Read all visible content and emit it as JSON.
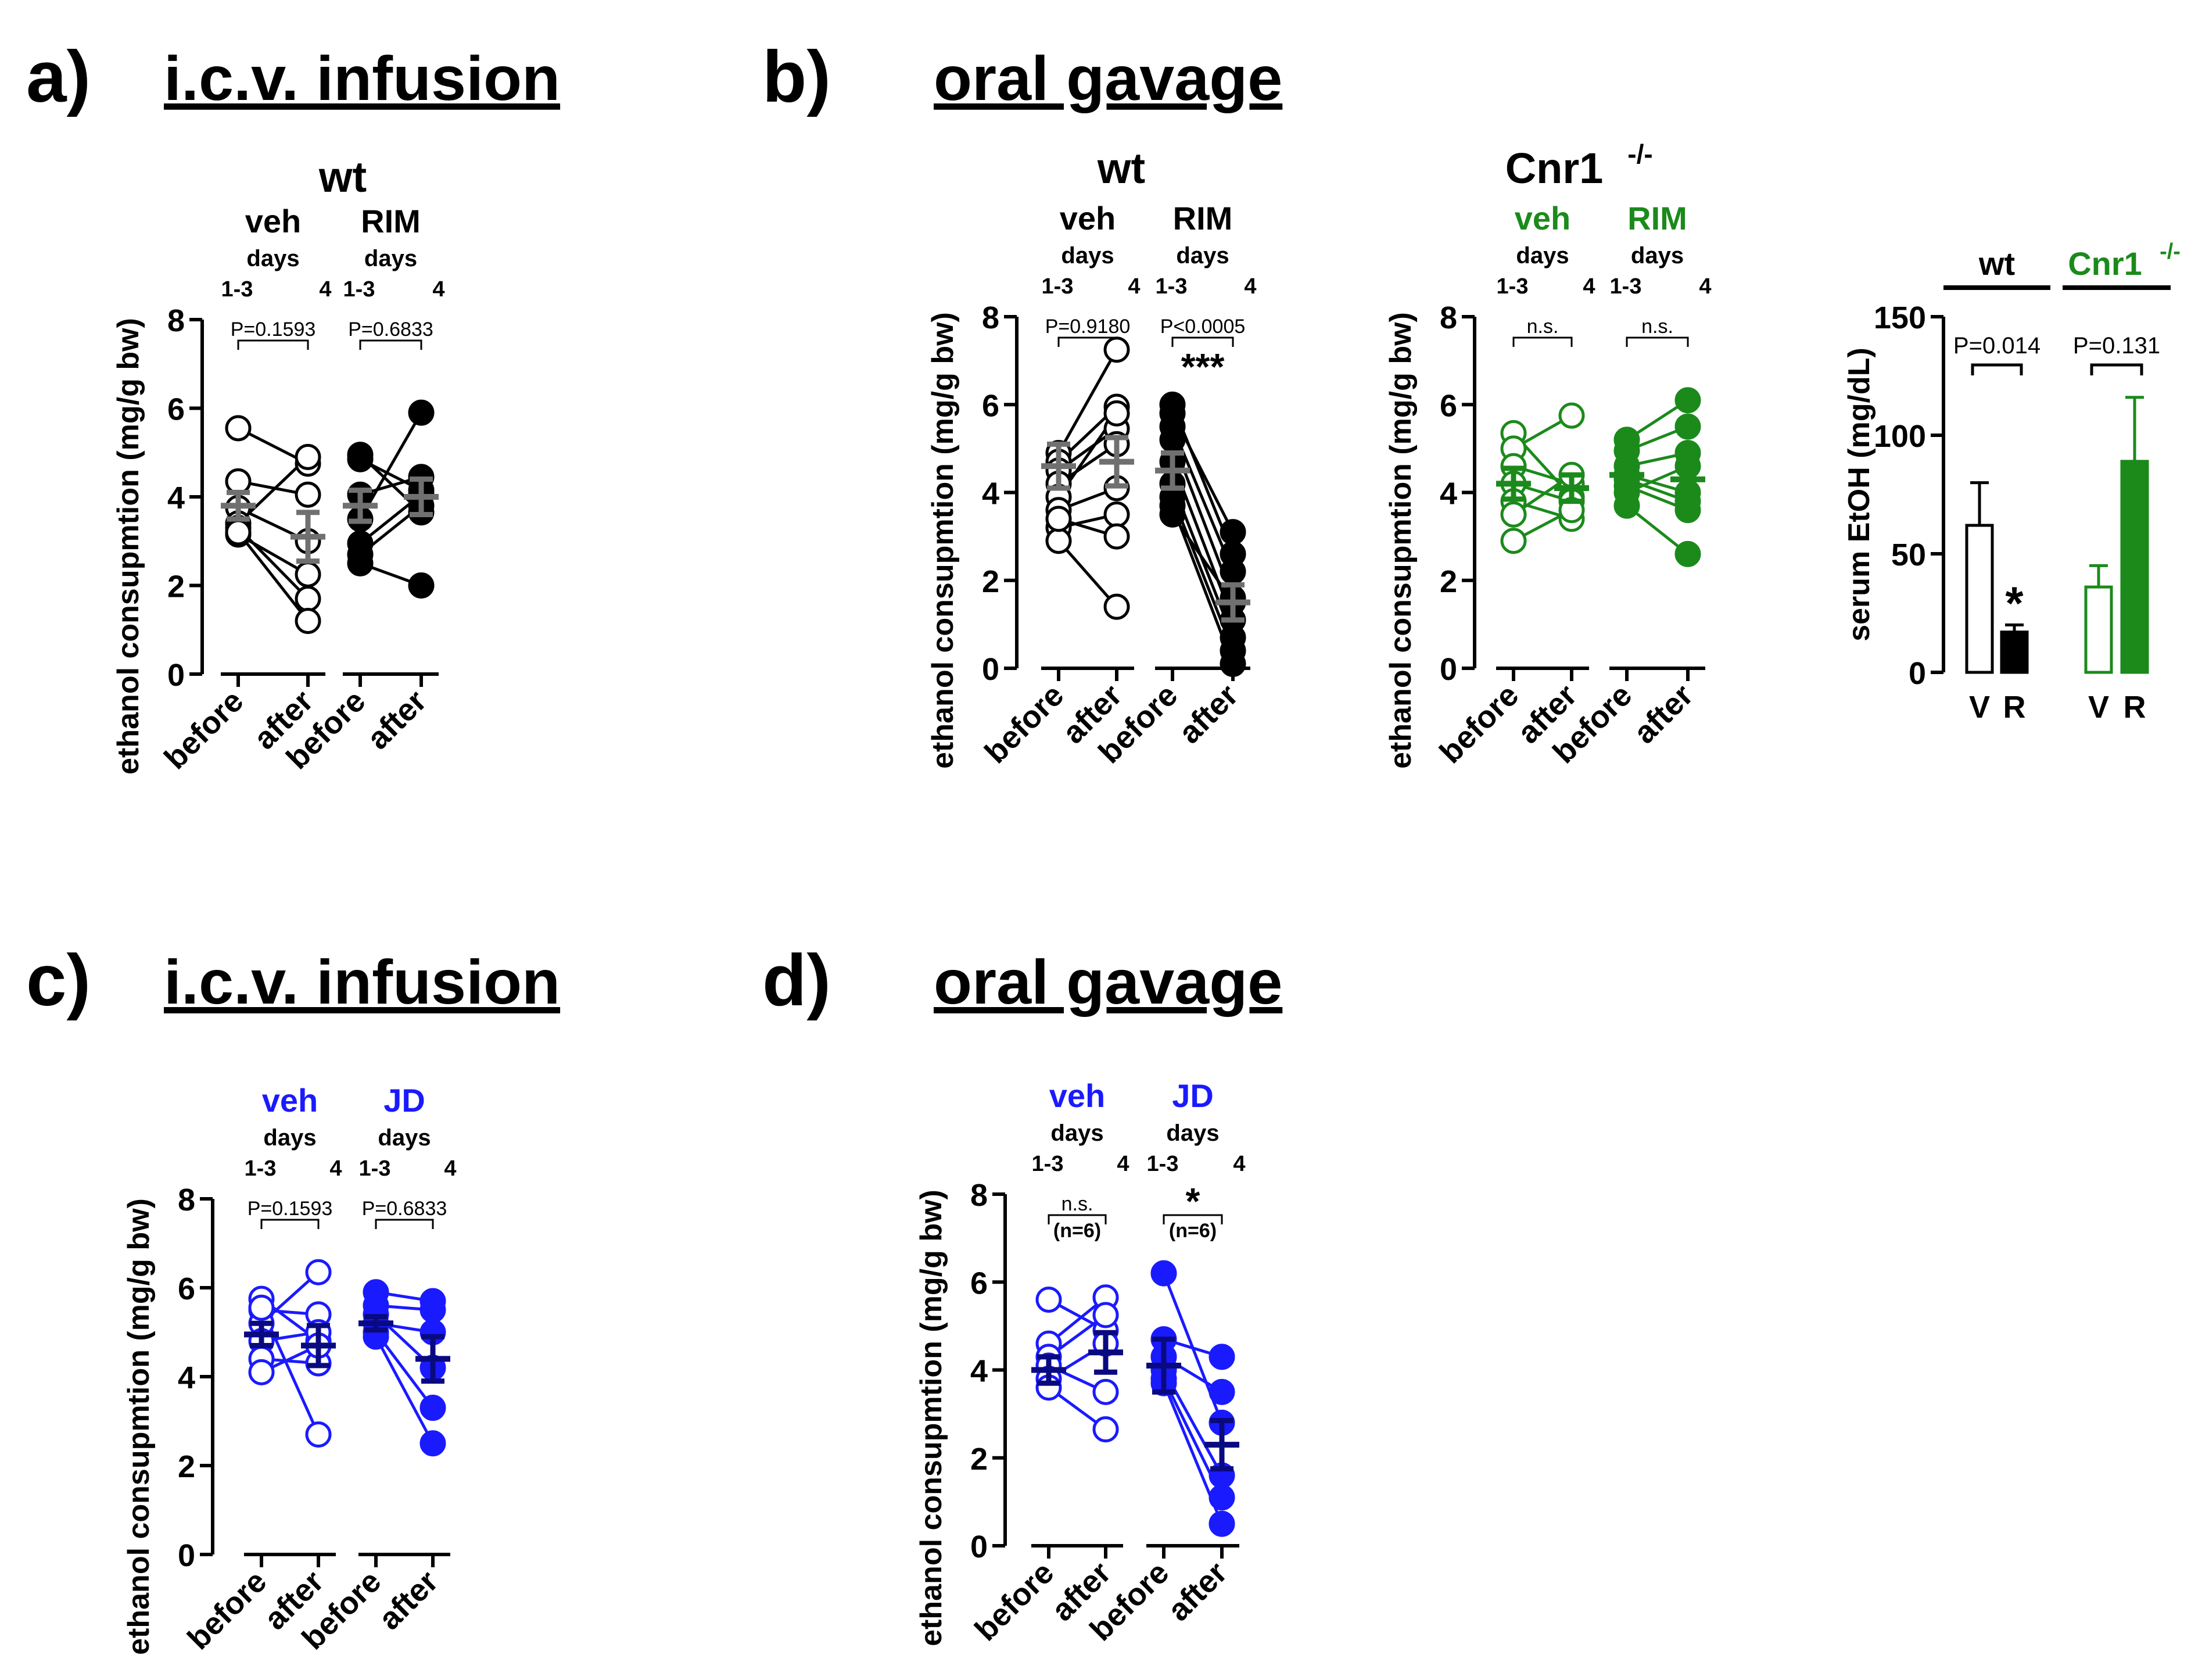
{
  "panels": [
    {
      "label": "a)",
      "title": "i.c.v. infusion"
    },
    {
      "label": "b)",
      "title": "oral gavage"
    },
    {
      "label": "c)",
      "title": "i.c.v. infusion"
    },
    {
      "label": "d)",
      "title": "oral gavage"
    }
  ],
  "chart_data": [
    {
      "type": "scatter",
      "panel": "a",
      "subtitle": "wt",
      "ylabel": "ethanol consupmtion (mg/g bw)",
      "ylim": [
        0,
        8
      ],
      "yticks": [
        0,
        2,
        4,
        6,
        8
      ],
      "xcats": [
        "before",
        "after",
        "before",
        "after"
      ],
      "day_label": "days",
      "day_ticks": [
        "1-3",
        "4"
      ],
      "groups": [
        {
          "name": "veh",
          "color": "#000000",
          "filled": false,
          "pvalue": "P=0.1593",
          "stars": "",
          "n_note": "",
          "pairs": [
            [
              5.55,
              4.75
            ],
            [
              4.35,
              4.05
            ],
            [
              3.75,
              3.0
            ],
            [
              3.4,
              4.9
            ],
            [
              3.15,
              2.25
            ],
            [
              3.3,
              1.7
            ],
            [
              3.2,
              1.2
            ]
          ],
          "mean": [
            3.8,
            3.1
          ],
          "sem": [
            0.3,
            0.55
          ],
          "summary_color": "#707070"
        },
        {
          "name": "RIM",
          "color": "#000000",
          "filled": true,
          "pvalue": "P=0.6833",
          "stars": "",
          "n_note": "",
          "pairs": [
            [
              4.95,
              3.65
            ],
            [
              4.85,
              4.15
            ],
            [
              4.05,
              4.45
            ],
            [
              3.5,
              5.9
            ],
            [
              2.95,
              4.05
            ],
            [
              2.7,
              3.8
            ],
            [
              2.5,
              2.0
            ]
          ],
          "mean": [
            3.8,
            4.0
          ],
          "sem": [
            0.35,
            0.4
          ],
          "summary_color": "#707070"
        }
      ]
    },
    {
      "type": "scatter",
      "panel": "b-wt",
      "subtitle": "wt",
      "ylabel": "ethanol consupmtion (mg/g bw)",
      "ylim": [
        0,
        8
      ],
      "yticks": [
        0,
        2,
        4,
        6,
        8
      ],
      "xcats": [
        "before",
        "after",
        "before",
        "after"
      ],
      "day_label": "days",
      "day_ticks": [
        "1-3",
        "4"
      ],
      "groups": [
        {
          "name": "veh",
          "color": "#000000",
          "filled": false,
          "pvalue": "P=0.9180",
          "stars": "",
          "n_note": "",
          "pairs": [
            [
              4.9,
              7.25
            ],
            [
              4.7,
              5.95
            ],
            [
              4.5,
              5.45
            ],
            [
              4.2,
              5.1
            ],
            [
              3.9,
              5.8
            ],
            [
              3.6,
              4.1
            ],
            [
              3.2,
              3.5
            ],
            [
              2.9,
              1.4
            ],
            [
              3.4,
              3.0
            ]
          ],
          "mean": [
            4.6,
            4.7
          ],
          "sem": [
            0.5,
            0.55
          ],
          "summary_color": "#707070"
        },
        {
          "name": "RIM",
          "color": "#000000",
          "filled": true,
          "pvalue": "P<0.0005",
          "stars": "***",
          "n_note": "",
          "pairs": [
            [
              6.0,
              2.6
            ],
            [
              5.8,
              3.1
            ],
            [
              5.5,
              2.2
            ],
            [
              5.2,
              1.6
            ],
            [
              4.7,
              1.1
            ],
            [
              4.2,
              0.7
            ],
            [
              3.9,
              0.4
            ],
            [
              3.7,
              0.1
            ],
            [
              3.5,
              1.5
            ]
          ],
          "mean": [
            4.5,
            1.5
          ],
          "sem": [
            0.4,
            0.4
          ],
          "summary_color": "#707070"
        }
      ]
    },
    {
      "type": "scatter",
      "panel": "b-cnr1",
      "subtitle": "Cnr1",
      "subtitle_sup": "-/-",
      "ylabel": "ethanol consupmtion (mg/g bw)",
      "ylim": [
        0,
        8
      ],
      "yticks": [
        0,
        2,
        4,
        6,
        8
      ],
      "xcats": [
        "before",
        "after",
        "before",
        "after"
      ],
      "day_label": "days",
      "day_ticks": [
        "1-3",
        "4"
      ],
      "groups": [
        {
          "name": "veh",
          "color": "#1b8a1b",
          "filled": false,
          "pvalue": "n.s.",
          "stars": "",
          "n_note": "",
          "pairs": [
            [
              5.35,
              3.9
            ],
            [
              5.0,
              5.75
            ],
            [
              4.6,
              4.2
            ],
            [
              4.2,
              3.8
            ],
            [
              3.8,
              3.4
            ],
            [
              3.5,
              4.4
            ],
            [
              2.9,
              3.6
            ]
          ],
          "mean": [
            4.2,
            4.1
          ],
          "sem": [
            0.35,
            0.3
          ],
          "summary_color": "#1b8a1b"
        },
        {
          "name": "RIM",
          "color": "#1b8a1b",
          "filled": true,
          "pvalue": "n.s.",
          "stars": "",
          "n_note": "",
          "pairs": [
            [
              5.2,
              6.1
            ],
            [
              4.95,
              5.5
            ],
            [
              4.6,
              4.9
            ],
            [
              4.4,
              4.0
            ],
            [
              4.15,
              3.6
            ],
            [
              4.0,
              4.6
            ],
            [
              3.7,
              2.6
            ],
            [
              4.3,
              3.8
            ]
          ],
          "mean": [
            4.4,
            4.3
          ],
          "sem": [
            0.3,
            0.4
          ],
          "summary_color": "#1b8a1b"
        }
      ]
    },
    {
      "type": "bar",
      "panel": "b-serum",
      "ylabel": "serum EtOH (mg/dL)",
      "ylim": [
        0,
        150
      ],
      "yticks": [
        0,
        50,
        100,
        150
      ],
      "categories": [
        "V",
        "R",
        "V",
        "R"
      ],
      "groups": [
        {
          "name": "wt",
          "name_sup": "",
          "color": "#000000",
          "pvalue": "P=0.014",
          "stars": "*"
        },
        {
          "name": "Cnr1",
          "name_sup": "-/-",
          "color": "#1b8a1b",
          "pvalue": "P=0.131",
          "stars": ""
        }
      ],
      "bars": [
        {
          "category": "V",
          "group": 0,
          "value": 62,
          "sem": 18,
          "filled": false
        },
        {
          "category": "R",
          "group": 0,
          "value": 17,
          "sem": 3,
          "filled": true
        },
        {
          "category": "V",
          "group": 1,
          "value": 36,
          "sem": 9,
          "filled": false
        },
        {
          "category": "R",
          "group": 1,
          "value": 89,
          "sem": 27,
          "filled": true
        }
      ]
    },
    {
      "type": "scatter",
      "panel": "c",
      "subtitle": "",
      "ylabel": "ethanol consupmtion (mg/g bw)",
      "ylim": [
        0,
        8
      ],
      "yticks": [
        0,
        2,
        4,
        6,
        8
      ],
      "xcats": [
        "before",
        "after",
        "before",
        "after"
      ],
      "day_label": "days",
      "day_ticks": [
        "1-3",
        "4"
      ],
      "groups": [
        {
          "name": "veh",
          "color": "#1a1aff",
          "filled": false,
          "pvalue": "P=0.1593",
          "stars": "",
          "n_note": "",
          "pairs": [
            [
              5.75,
              4.8
            ],
            [
              5.5,
              5.4
            ],
            [
              5.2,
              6.35
            ],
            [
              4.8,
              5.0
            ],
            [
              4.4,
              4.3
            ],
            [
              4.1,
              4.7
            ],
            [
              5.55,
              2.7
            ]
          ],
          "mean": [
            4.95,
            4.7
          ],
          "sem": [
            0.25,
            0.45
          ],
          "summary_color": "#0a0a80"
        },
        {
          "name": "JD",
          "color": "#1a1aff",
          "filled": true,
          "pvalue": "P=0.6833",
          "stars": "",
          "n_note": "",
          "pairs": [
            [
              5.9,
              5.7
            ],
            [
              5.6,
              5.5
            ],
            [
              5.4,
              4.2
            ],
            [
              5.2,
              5.0
            ],
            [
              5.0,
              3.3
            ],
            [
              4.9,
              2.5
            ]
          ],
          "mean": [
            5.2,
            4.4
          ],
          "sem": [
            0.15,
            0.5
          ],
          "summary_color": "#0a0a80"
        }
      ]
    },
    {
      "type": "scatter",
      "panel": "d",
      "subtitle": "",
      "ylabel": "ethanol consupmtion (mg/g bw)",
      "ylim": [
        0,
        8
      ],
      "yticks": [
        0,
        2,
        4,
        6,
        8
      ],
      "xcats": [
        "before",
        "after",
        "before",
        "after"
      ],
      "day_label": "days",
      "day_ticks": [
        "1-3",
        "4"
      ],
      "groups": [
        {
          "name": "veh",
          "color": "#1a1aff",
          "filled": false,
          "pvalue": "n.s.",
          "stars": "",
          "n_note": "(n=6)",
          "pairs": [
            [
              5.6,
              4.9
            ],
            [
              4.6,
              5.65
            ],
            [
              4.3,
              5.25
            ],
            [
              4.1,
              3.5
            ],
            [
              3.8,
              4.6
            ],
            [
              3.6,
              2.65
            ]
          ],
          "mean": [
            4.0,
            4.4
          ],
          "sem": [
            0.3,
            0.45
          ],
          "summary_color": "#0a0a80"
        },
        {
          "name": "JD",
          "color": "#1a1aff",
          "filled": true,
          "pvalue": "",
          "stars": "*",
          "n_note": "(n=6)",
          "pairs": [
            [
              6.2,
              2.8
            ],
            [
              4.7,
              4.3
            ],
            [
              4.3,
              3.5
            ],
            [
              4.0,
              1.6
            ],
            [
              3.8,
              1.1
            ],
            [
              3.7,
              0.5
            ]
          ],
          "mean": [
            4.1,
            2.3
          ],
          "sem": [
            0.6,
            0.55
          ],
          "summary_color": "#0a0a80"
        }
      ]
    }
  ]
}
